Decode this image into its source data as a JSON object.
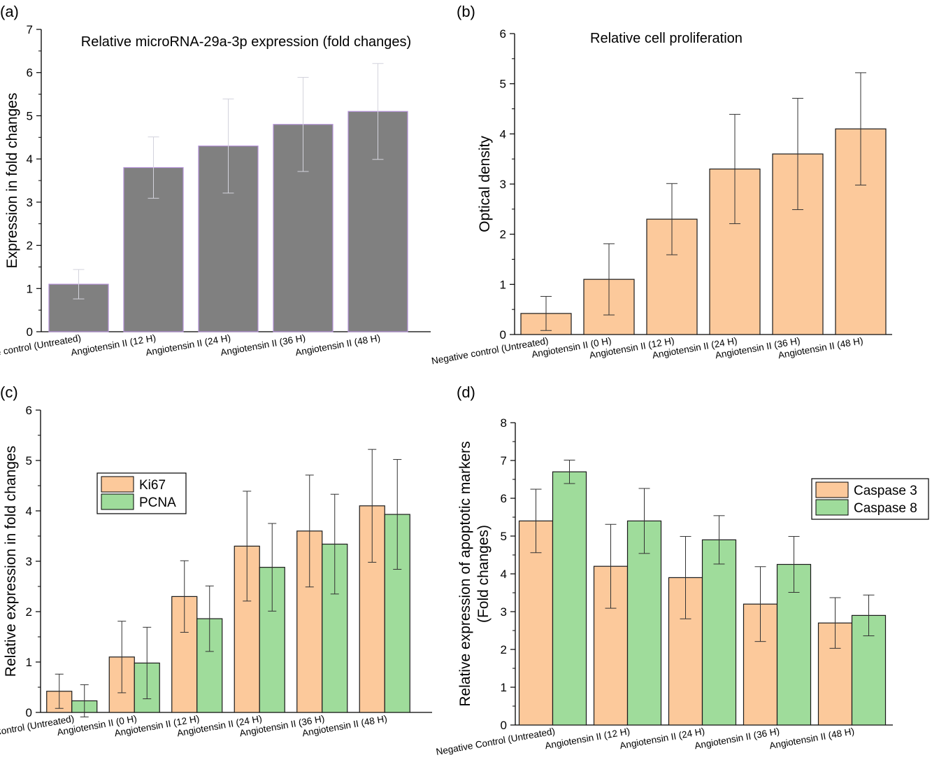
{
  "panels": [
    {
      "panel_label": "(a)",
      "colors": {
        "bar": "#808080",
        "bar_edge": "#b28fd6",
        "error": "#d3d3dc"
      },
      "chart_data": {
        "type": "bar",
        "title": "Relative microRNA-29a-3p expression (fold changes)",
        "xlabel": "",
        "ylabel": "Expression in fold changes",
        "ylim": [
          0,
          7
        ],
        "yticks": [
          0,
          1,
          2,
          3,
          4,
          5,
          6,
          7
        ],
        "categories": [
          "Negative control (Untreated)",
          "Angiotensin II (12 H)",
          "Angiotensin II (24 H)",
          "Angiotensin II (36 H)",
          "Angiotensin II (48 H)"
        ],
        "series": [
          {
            "values": [
              1.1,
              3.8,
              4.3,
              4.8,
              5.1
            ],
            "errors": [
              0.34,
              0.71,
              1.09,
              1.09,
              1.11
            ]
          }
        ],
        "grid": false
      }
    },
    {
      "panel_label": "(b)",
      "colors": {
        "bar": "#fcc99b",
        "bar_edge": "#1a1a1a",
        "error": "#333333"
      },
      "chart_data": {
        "type": "bar",
        "title": "Relative cell proliferation",
        "xlabel": "",
        "ylabel": "Optical density",
        "ylim": [
          0,
          6
        ],
        "yticks": [
          0,
          1,
          2,
          3,
          4,
          5,
          6
        ],
        "categories": [
          "Negative control (Untreated)",
          "Angiotensin II (0 H)",
          "Angiotensin II (12 H)",
          "Angiotensin II (24 H)",
          "Angiotensin II (36 H)",
          "Angiotensin II (48 H)"
        ],
        "series": [
          {
            "values": [
              0.42,
              1.1,
              2.3,
              3.3,
              3.6,
              4.1
            ],
            "errors": [
              0.34,
              0.71,
              0.71,
              1.09,
              1.11,
              1.12
            ]
          }
        ],
        "grid": false
      }
    },
    {
      "panel_label": "(c)",
      "colors": {
        "bar_edge": "#1a1a1a",
        "error": "#333333"
      },
      "chart_data": {
        "type": "bar",
        "title": "",
        "xlabel": "",
        "ylabel": "Relative expression in fold changes",
        "ylim": [
          0,
          6
        ],
        "yticks": [
          0,
          1,
          2,
          3,
          4,
          5,
          6
        ],
        "categories": [
          "Negative Control (Untreated)",
          "Angiotensin II (0 H)",
          "Angiotensin II (12 H)",
          "Angiotensin II (24 H)",
          "Angiotensin II (36 H)",
          "Angiotensin II (48 H)"
        ],
        "series": [
          {
            "name": "Ki67",
            "color": "#fcc99b",
            "values": [
              0.42,
              1.1,
              2.3,
              3.3,
              3.6,
              4.1
            ],
            "errors": [
              0.34,
              0.71,
              0.71,
              1.09,
              1.11,
              1.12
            ]
          },
          {
            "name": "PCNA",
            "color": "#9fdc9b",
            "values": [
              0.23,
              0.98,
              1.86,
              2.88,
              3.34,
              3.93
            ],
            "errors": [
              0.32,
              0.71,
              0.65,
              0.87,
              0.99,
              1.09
            ]
          }
        ],
        "legend_position": "upper-left",
        "grid": false
      }
    },
    {
      "panel_label": "(d)",
      "colors": {
        "bar_edge": "#1a1a1a",
        "error": "#333333"
      },
      "chart_data": {
        "type": "bar",
        "title": "",
        "xlabel": "",
        "ylabel": [
          "Relative expression of apoptotic markers",
          "(Fold changes)"
        ],
        "ylim": [
          0,
          8
        ],
        "yticks": [
          0,
          1,
          2,
          3,
          4,
          5,
          6,
          7,
          8
        ],
        "categories": [
          "Negative Control (Untreated)",
          "Angiotensin II (12 H)",
          "Angiotensin II (24 H)",
          "Angiotensin II (36 H)",
          "Angiotensin II (48 H)"
        ],
        "series": [
          {
            "name": "Caspase 3",
            "color": "#fcc99b",
            "values": [
              5.4,
              4.2,
              3.9,
              3.2,
              2.7
            ],
            "errors": [
              0.84,
              1.11,
              1.09,
              0.99,
              0.67
            ]
          },
          {
            "name": "Caspase 8",
            "color": "#9fdc9b",
            "values": [
              6.7,
              5.4,
              4.9,
              4.25,
              2.9
            ],
            "errors": [
              0.31,
              0.86,
              0.64,
              0.74,
              0.54
            ]
          }
        ],
        "legend_position": "upper-right",
        "grid": false
      }
    }
  ]
}
